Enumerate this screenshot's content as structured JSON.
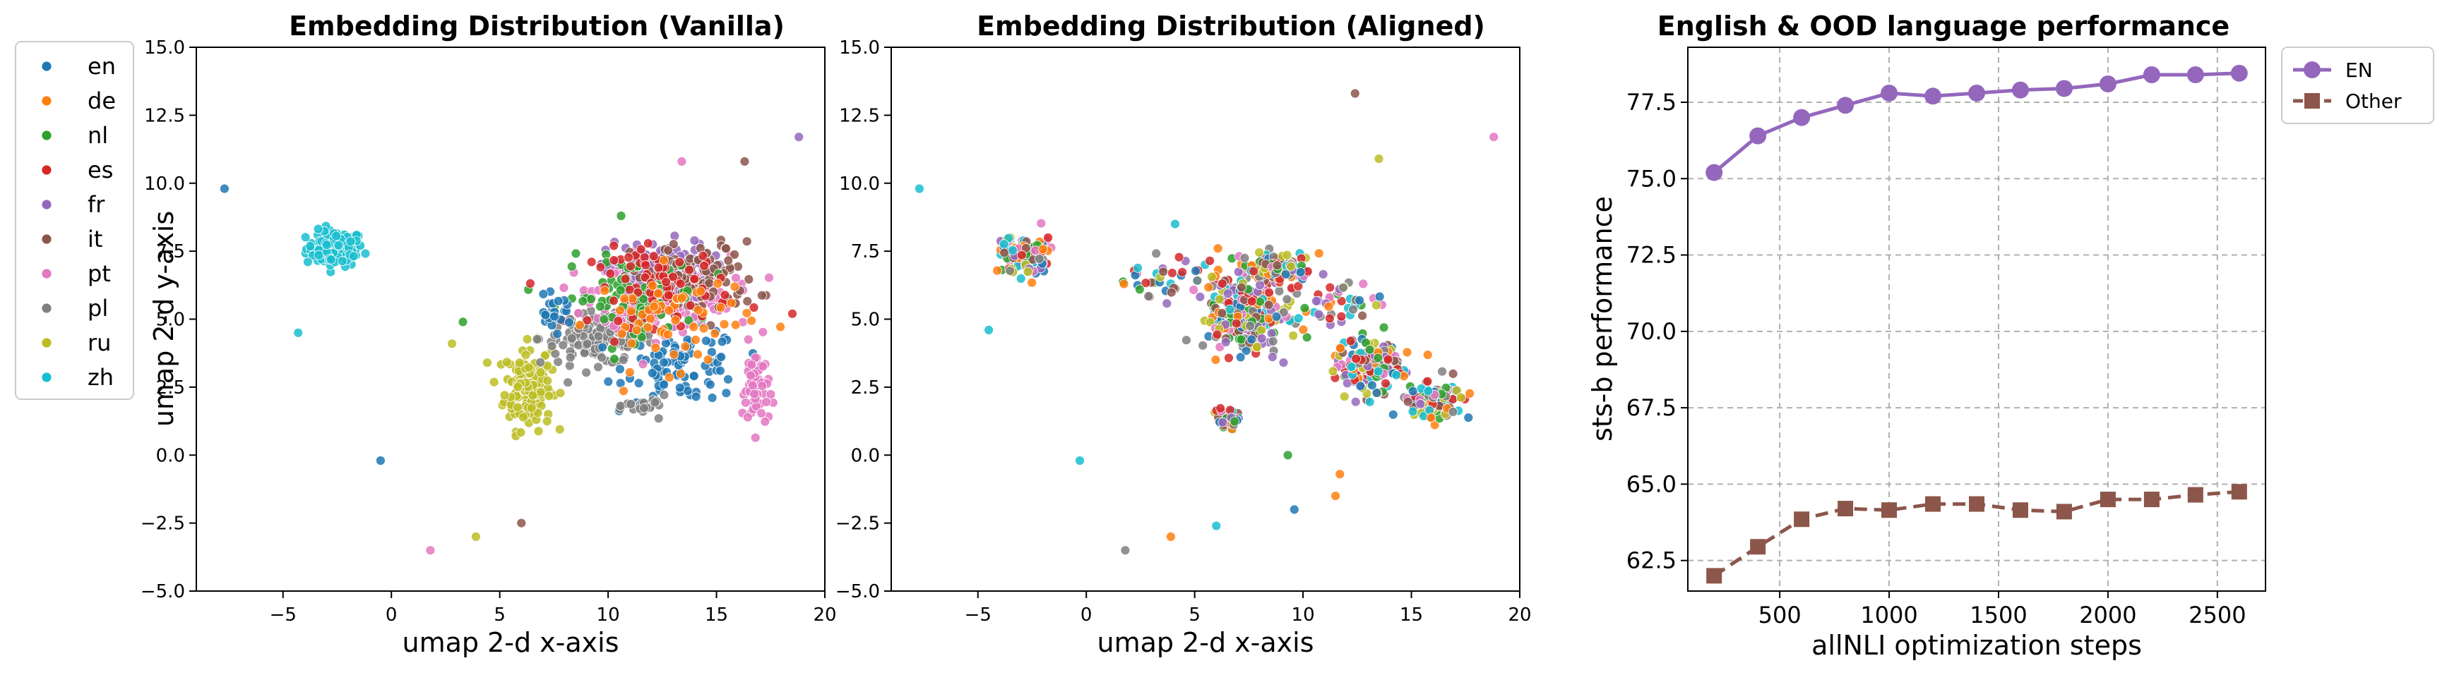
{
  "colors": {
    "en": "#1f77b4",
    "de": "#ff7f0e",
    "nl": "#2ca02c",
    "es": "#d62728",
    "fr": "#9467bd",
    "it": "#8c564b",
    "pt": "#e377c2",
    "pl": "#7f7f7f",
    "ru": "#bcbd22",
    "zh": "#17becf",
    "EN": "#9467bd",
    "Other": "#8c564b"
  },
  "legend_languages": [
    "en",
    "de",
    "nl",
    "es",
    "fr",
    "it",
    "pt",
    "pl",
    "ru",
    "zh"
  ],
  "chart_data": [
    {
      "type": "scatter",
      "title": "Embedding Distribution (Vanilla)",
      "xlabel": "umap 2-d x-axis",
      "ylabel": "umap 2-d y-axis",
      "xlim": [
        -9,
        20
      ],
      "ylim": [
        -5,
        15
      ],
      "xticks": [
        -5,
        0,
        5,
        10,
        15,
        20
      ],
      "yticks": [
        -5.0,
        -2.5,
        0.0,
        2.5,
        5.0,
        7.5,
        10.0,
        12.5,
        15.0
      ],
      "ytick_labels": [
        "−5.0",
        "−2.5",
        "0.0",
        "2.5",
        "5.0",
        "7.5",
        "10.0",
        "12.5",
        "15.0"
      ],
      "xtick_labels": [
        "−5",
        "0",
        "5",
        "10",
        "15",
        "20"
      ],
      "grid": false,
      "legend": "outside-left",
      "clusters": [
        {
          "lang": "zh",
          "cx": -2.6,
          "cy": 7.6,
          "sx": 1.1,
          "sy": 0.55,
          "n": 110
        },
        {
          "lang": "ru",
          "cx": 6.3,
          "cy": 2.5,
          "sx": 0.9,
          "sy": 1.3,
          "n": 150
        },
        {
          "lang": "pl",
          "cx": 9.5,
          "cy": 4.3,
          "sx": 2.2,
          "sy": 0.8,
          "n": 150
        },
        {
          "lang": "en",
          "cx": 13.5,
          "cy": 3.3,
          "sx": 2.2,
          "sy": 1.1,
          "n": 90
        },
        {
          "lang": "pt",
          "cx": 12.5,
          "cy": 6.0,
          "sx": 2.6,
          "sy": 1.1,
          "n": 240
        },
        {
          "lang": "fr",
          "cx": 12.3,
          "cy": 6.8,
          "sx": 2.0,
          "sy": 0.9,
          "n": 110
        },
        {
          "lang": "it",
          "cx": 14.0,
          "cy": 6.5,
          "sx": 2.4,
          "sy": 1.1,
          "n": 110
        },
        {
          "lang": "nl",
          "cx": 11.0,
          "cy": 5.8,
          "sx": 2.6,
          "sy": 1.2,
          "n": 80
        },
        {
          "lang": "es",
          "cx": 12.5,
          "cy": 6.2,
          "sx": 2.7,
          "sy": 1.2,
          "n": 80
        },
        {
          "lang": "de",
          "cx": 13.0,
          "cy": 5.0,
          "sx": 3.0,
          "sy": 1.5,
          "n": 60
        },
        {
          "lang": "pt",
          "cx": 16.8,
          "cy": 2.5,
          "sx": 0.5,
          "sy": 1.3,
          "n": 60
        },
        {
          "lang": "en",
          "cx": 7.5,
          "cy": 5.2,
          "sx": 0.7,
          "sy": 0.5,
          "n": 25
        },
        {
          "lang": "pl",
          "cx": 11.8,
          "cy": 1.8,
          "sx": 0.8,
          "sy": 0.3,
          "n": 25
        }
      ],
      "outliers": [
        {
          "lang": "en",
          "x": -7.7,
          "y": 9.8
        },
        {
          "lang": "zh",
          "x": -4.3,
          "y": 4.5
        },
        {
          "lang": "en",
          "x": -0.5,
          "y": -0.2
        },
        {
          "lang": "pt",
          "x": 1.8,
          "y": -3.5
        },
        {
          "lang": "ru",
          "x": 3.9,
          "y": -3.0
        },
        {
          "lang": "it",
          "x": 6.0,
          "y": -2.5
        },
        {
          "lang": "pt",
          "x": 13.4,
          "y": 10.8
        },
        {
          "lang": "it",
          "x": 16.3,
          "y": 10.8
        },
        {
          "lang": "fr",
          "x": 18.8,
          "y": 11.7
        },
        {
          "lang": "nl",
          "x": 3.3,
          "y": 4.9
        },
        {
          "lang": "ru",
          "x": 2.8,
          "y": 4.1
        },
        {
          "lang": "es",
          "x": 18.5,
          "y": 5.2
        },
        {
          "lang": "nl",
          "x": 10.6,
          "y": 8.8
        }
      ]
    },
    {
      "type": "scatter",
      "title": "Embedding Distribution (Aligned)",
      "xlabel": "umap 2-d x-axis",
      "ylabel": "",
      "xlim": [
        -9,
        20
      ],
      "ylim": [
        -5,
        15
      ],
      "xticks": [
        -5,
        0,
        5,
        10,
        15,
        20
      ],
      "yticks": [
        -5.0,
        -2.5,
        0.0,
        2.5,
        5.0,
        7.5,
        10.0,
        12.5,
        15.0
      ],
      "ytick_labels": [
        "−5.0",
        "−2.5",
        "0.0",
        "2.5",
        "5.0",
        "7.5",
        "10.0",
        "12.5",
        "15.0"
      ],
      "xtick_labels": [
        "−5",
        "0",
        "5",
        "10",
        "15",
        "20"
      ],
      "grid": false,
      "clusters": [
        {
          "mixed": true,
          "cx": -2.8,
          "cy": 7.3,
          "sx": 0.9,
          "sy": 0.6,
          "n": 120
        },
        {
          "mixed": true,
          "cx": 7.5,
          "cy": 5.2,
          "sx": 1.6,
          "sy": 1.4,
          "n": 280
        },
        {
          "mixed": true,
          "cx": 8.8,
          "cy": 6.9,
          "sx": 1.3,
          "sy": 0.5,
          "n": 120
        },
        {
          "mixed": true,
          "cx": 13.0,
          "cy": 3.3,
          "sx": 1.2,
          "sy": 0.8,
          "n": 170
        },
        {
          "mixed": true,
          "cx": 16.2,
          "cy": 2.0,
          "sx": 1.0,
          "sy": 0.5,
          "n": 150
        },
        {
          "mixed": true,
          "cx": 6.6,
          "cy": 1.3,
          "sx": 0.5,
          "sy": 0.3,
          "n": 30
        },
        {
          "mixed": true,
          "cx": 3.5,
          "cy": 6.5,
          "sx": 2.5,
          "sy": 0.7,
          "n": 40
        },
        {
          "mixed": true,
          "cx": 11.8,
          "cy": 5.5,
          "sx": 1.5,
          "sy": 0.8,
          "n": 40
        }
      ],
      "outliers": [
        {
          "lang": "zh",
          "x": -7.7,
          "y": 9.8
        },
        {
          "lang": "zh",
          "x": -0.3,
          "y": -0.2
        },
        {
          "lang": "pl",
          "x": 1.8,
          "y": -3.5
        },
        {
          "lang": "de",
          "x": 3.9,
          "y": -3.0
        },
        {
          "lang": "zh",
          "x": 6.0,
          "y": -2.6
        },
        {
          "lang": "it",
          "x": 12.4,
          "y": 13.3
        },
        {
          "lang": "ru",
          "x": 13.5,
          "y": 10.9
        },
        {
          "lang": "pt",
          "x": 18.8,
          "y": 11.7
        },
        {
          "lang": "en",
          "x": 9.6,
          "y": -2.0
        },
        {
          "lang": "de",
          "x": 11.5,
          "y": -1.5
        },
        {
          "lang": "nl",
          "x": 9.3,
          "y": 0.0
        },
        {
          "lang": "de",
          "x": 11.7,
          "y": -0.7
        },
        {
          "lang": "zh",
          "x": -4.5,
          "y": 4.6
        },
        {
          "lang": "zh",
          "x": 4.1,
          "y": 8.5
        }
      ]
    },
    {
      "type": "line",
      "title": "English & OOD language performance",
      "xlabel": "allNLI optimization steps",
      "ylabel": "sts-b performance",
      "x": [
        200,
        400,
        600,
        800,
        1000,
        1200,
        1400,
        1600,
        1800,
        2000,
        2200,
        2400,
        2600
      ],
      "xlim": [
        80,
        2720
      ],
      "ylim": [
        61.5,
        79.3
      ],
      "xticks": [
        500,
        1000,
        1500,
        2000,
        2500
      ],
      "yticks": [
        62.5,
        65.0,
        67.5,
        70.0,
        72.5,
        75.0,
        77.5
      ],
      "grid": true,
      "legend": "outside-right",
      "series": [
        {
          "name": "EN",
          "marker": "circle",
          "style": "solid",
          "values": [
            75.2,
            76.4,
            77.0,
            77.4,
            77.8,
            77.7,
            77.8,
            77.9,
            77.95,
            78.1,
            78.4,
            78.4,
            78.45
          ]
        },
        {
          "name": "Other",
          "marker": "square",
          "style": "dashed",
          "values": [
            62.0,
            62.95,
            63.85,
            64.2,
            64.15,
            64.35,
            64.35,
            64.15,
            64.1,
            64.5,
            64.5,
            64.65,
            64.75
          ]
        }
      ]
    }
  ]
}
